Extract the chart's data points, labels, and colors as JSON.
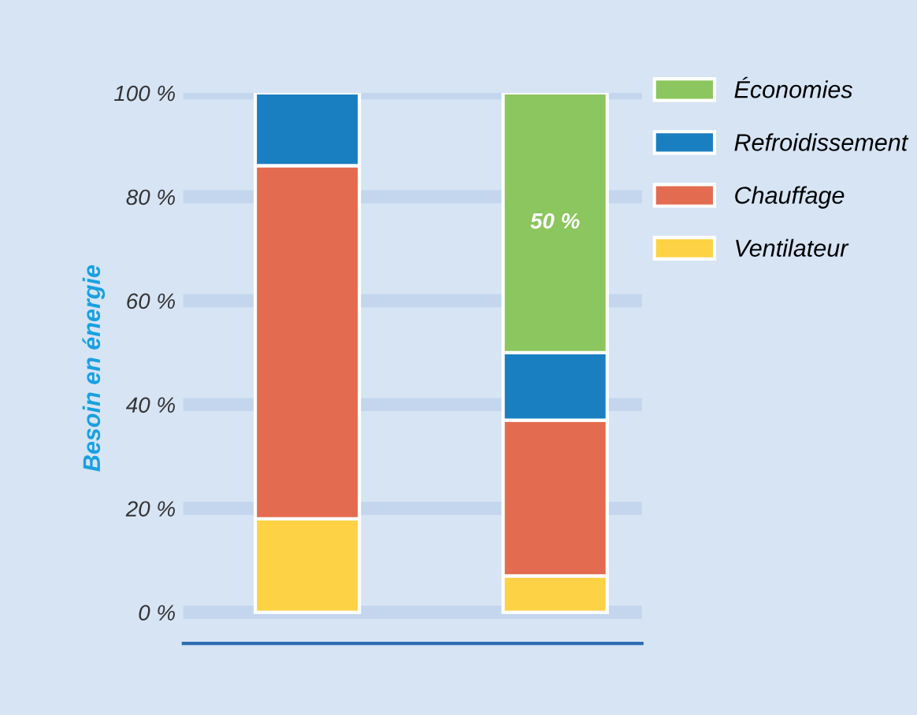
{
  "chart_data": {
    "type": "bar",
    "stacked": true,
    "ylabel": "Besoin en énergie",
    "categories": [
      null,
      null
    ],
    "series": [
      {
        "name": "Ventilateur",
        "color": "#fdd245",
        "values": [
          18,
          7
        ]
      },
      {
        "name": "Chauffage",
        "color": "#e36c50",
        "values": [
          68,
          30
        ]
      },
      {
        "name": "Refroidissement",
        "color": "#1a7fc1",
        "values": [
          14,
          13
        ]
      },
      {
        "name": "Économies",
        "color": "#8cc65e",
        "values": [
          null,
          50
        ],
        "value_labels": [
          null,
          "50 %"
        ]
      }
    ],
    "ylim": [
      -6,
      100
    ],
    "yticks": [
      {
        "value": 0,
        "label": "0 %"
      },
      {
        "value": 20,
        "label": "20 %"
      },
      {
        "value": 40,
        "label": "40 %"
      },
      {
        "value": 60,
        "label": "60 %"
      },
      {
        "value": 80,
        "label": "80 %"
      },
      {
        "value": 100,
        "label": "100 %"
      }
    ],
    "grid": "y",
    "legend": "right"
  }
}
